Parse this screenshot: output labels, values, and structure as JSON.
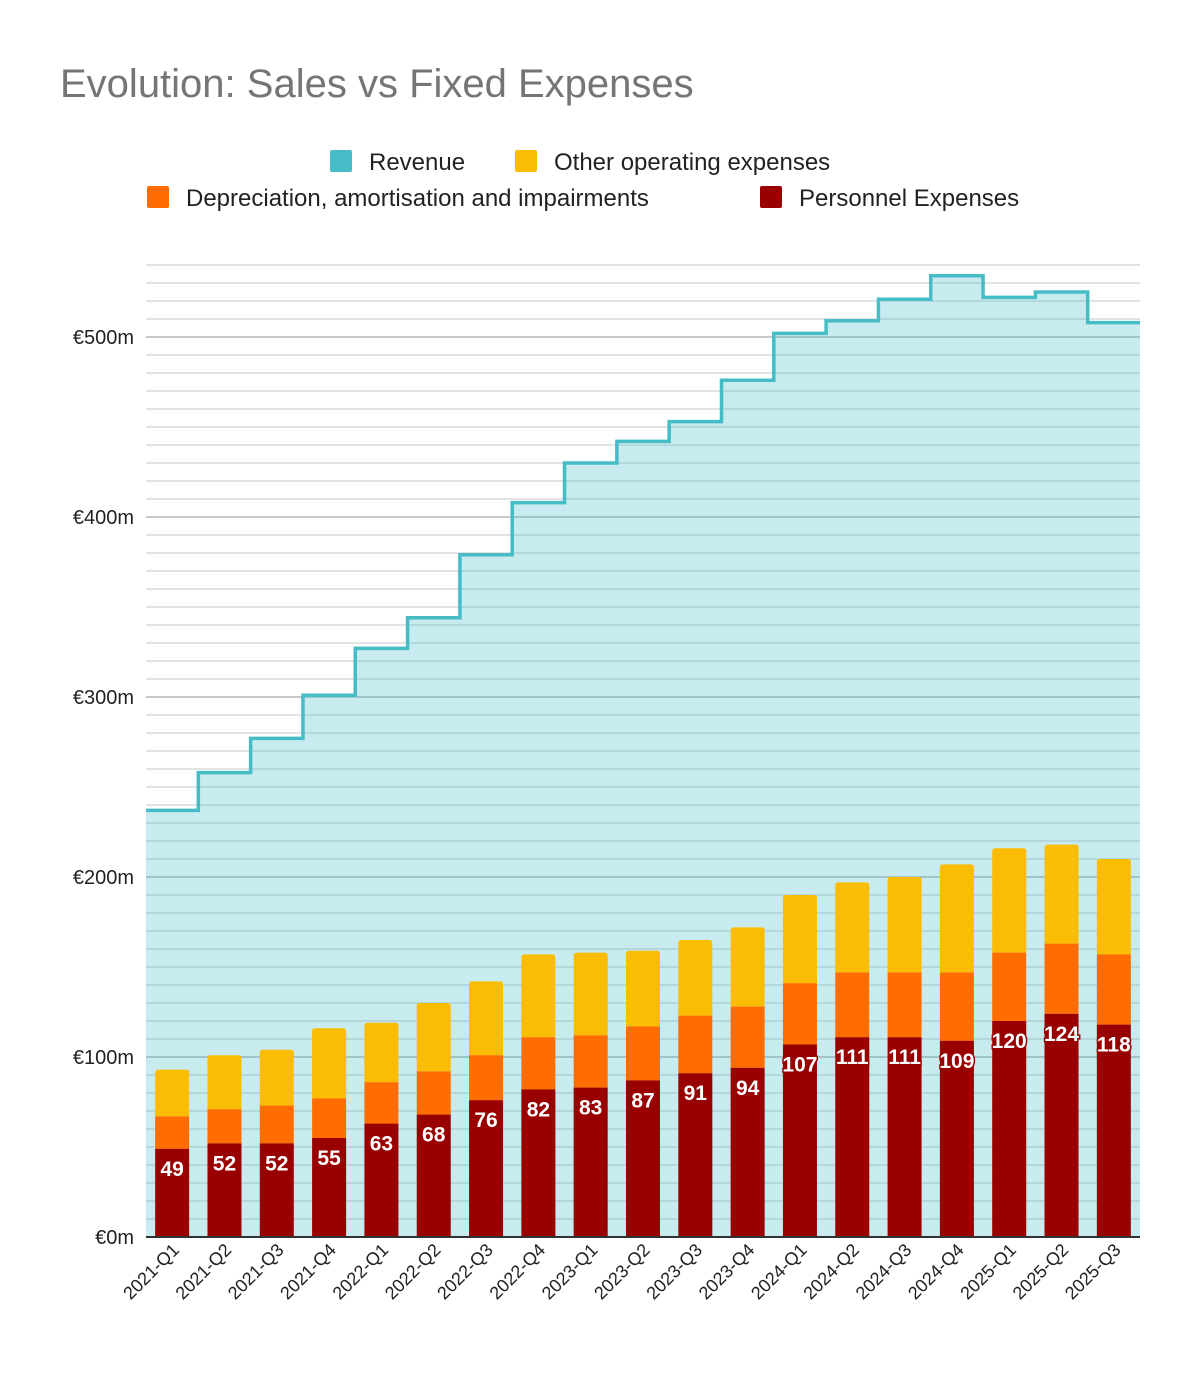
{
  "chart_data": {
    "type": "bar",
    "title": "Evolution: Sales vs Fixed Expenses",
    "xlabel": "",
    "ylabel": "",
    "ylim": [
      0,
      540
    ],
    "grid": true,
    "legend_position": "top",
    "y_ticks": [
      {
        "value": 0,
        "label": "€0m"
      },
      {
        "value": 100,
        "label": "€100m"
      },
      {
        "value": 200,
        "label": "€200m"
      },
      {
        "value": 300,
        "label": "€300m"
      },
      {
        "value": 400,
        "label": "€400m"
      },
      {
        "value": 500,
        "label": "€500m"
      }
    ],
    "categories": [
      "2021-Q1",
      "2021-Q2",
      "2021-Q3",
      "2021-Q4",
      "2022-Q1",
      "2022-Q2",
      "2022-Q3",
      "2022-Q4",
      "2023-Q1",
      "2023-Q2",
      "2023-Q3",
      "2023-Q4",
      "2024-Q1",
      "2024-Q2",
      "2024-Q3",
      "2024-Q4",
      "2025-Q1",
      "2025-Q2",
      "2025-Q3"
    ],
    "series": [
      {
        "name": "Revenue",
        "type": "stepped-area",
        "color": "#46bdc6",
        "values": [
          237,
          258,
          277,
          301,
          327,
          344,
          379,
          408,
          430,
          442,
          453,
          476,
          502,
          509,
          521,
          534,
          522,
          525,
          508
        ]
      },
      {
        "name": "Other operating expenses",
        "type": "stacked-bar",
        "color": "#fbbc04",
        "values": [
          26,
          30,
          31,
          39,
          33,
          38,
          41,
          46,
          46,
          42,
          42,
          44,
          49,
          50,
          53,
          60,
          58,
          55,
          53
        ]
      },
      {
        "name": "Depreciation, amortisation and impairments",
        "type": "stacked-bar",
        "color": "#ff6d01",
        "values": [
          18,
          19,
          21,
          22,
          23,
          24,
          25,
          29,
          29,
          30,
          32,
          34,
          34,
          36,
          36,
          38,
          38,
          39,
          39
        ]
      },
      {
        "name": "Personnel Expenses",
        "type": "stacked-bar",
        "color": "#990000",
        "values": [
          49,
          52,
          52,
          55,
          63,
          68,
          76,
          82,
          83,
          87,
          91,
          94,
          107,
          111,
          111,
          109,
          120,
          124,
          118
        ],
        "data_labels": [
          "49",
          "52",
          "52",
          "55",
          "63",
          "68",
          "76",
          "82",
          "83",
          "87",
          "91",
          "94",
          "107",
          "111",
          "111",
          "109",
          "120",
          "124",
          "118"
        ]
      }
    ]
  }
}
